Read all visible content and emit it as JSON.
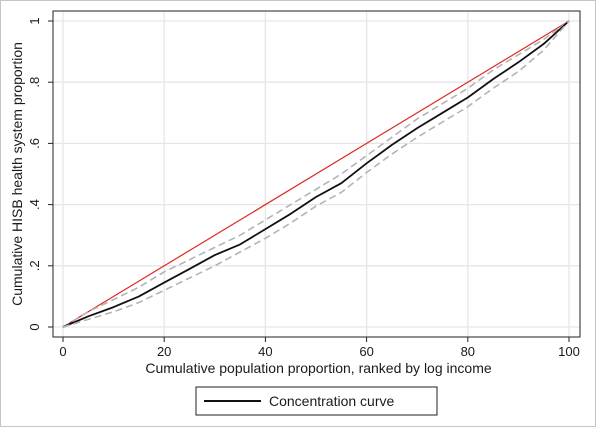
{
  "chart_data": {
    "type": "line",
    "xlabel": "Cumulative population proportion, ranked by log income",
    "ylabel": "Cumulative HISB health system proportion",
    "xlim": [
      0,
      100
    ],
    "ylim": [
      0,
      1
    ],
    "xticks": [
      0,
      20,
      40,
      60,
      80,
      100
    ],
    "xtick_labels": [
      "0",
      "20",
      "40",
      "60",
      "80",
      "100"
    ],
    "yticks": [
      0,
      0.2,
      0.4,
      0.6,
      0.8,
      1
    ],
    "ytick_labels": [
      "0",
      ".2",
      ".4",
      ".6",
      ".8",
      "1"
    ],
    "grid": true,
    "legend_position": "bottom",
    "colors": {
      "equality_line": "#e0281e",
      "concentration_curve": "#111111",
      "confidence_band": "#b4b4b4",
      "grid": "#e6e6e6",
      "plot_border": "#222222",
      "legend_border": "#222222"
    },
    "series": [
      {
        "key": "equality",
        "style": "solid-red",
        "x": [
          0,
          100
        ],
        "y": [
          0,
          1
        ]
      },
      {
        "key": "upper_ci",
        "style": "dashed-gray",
        "x": [
          0,
          5,
          10,
          15,
          20,
          25,
          30,
          35,
          40,
          45,
          50,
          55,
          60,
          65,
          70,
          75,
          80,
          85,
          90,
          95,
          100
        ],
        "y": [
          0,
          0.05,
          0.09,
          0.13,
          0.18,
          0.22,
          0.26,
          0.3,
          0.35,
          0.4,
          0.45,
          0.5,
          0.56,
          0.62,
          0.68,
          0.73,
          0.78,
          0.84,
          0.89,
          0.94,
          1.0
        ]
      },
      {
        "key": "concentration",
        "name": "Concentration curve",
        "style": "solid-black",
        "x": [
          0,
          5,
          10,
          15,
          20,
          25,
          30,
          35,
          40,
          45,
          50,
          55,
          60,
          65,
          70,
          75,
          80,
          85,
          90,
          95,
          100
        ],
        "y": [
          0,
          0.035,
          0.065,
          0.1,
          0.145,
          0.19,
          0.235,
          0.27,
          0.32,
          0.37,
          0.425,
          0.47,
          0.535,
          0.595,
          0.65,
          0.7,
          0.75,
          0.81,
          0.865,
          0.925,
          1.0
        ]
      },
      {
        "key": "lower_ci",
        "style": "dashed-gray",
        "x": [
          0,
          5,
          10,
          15,
          20,
          25,
          30,
          35,
          40,
          45,
          50,
          55,
          60,
          65,
          70,
          75,
          80,
          85,
          90,
          95,
          100
        ],
        "y": [
          0,
          0.025,
          0.05,
          0.08,
          0.12,
          0.16,
          0.2,
          0.245,
          0.29,
          0.34,
          0.395,
          0.44,
          0.505,
          0.565,
          0.62,
          0.67,
          0.72,
          0.78,
          0.835,
          0.905,
          1.0
        ]
      }
    ]
  }
}
